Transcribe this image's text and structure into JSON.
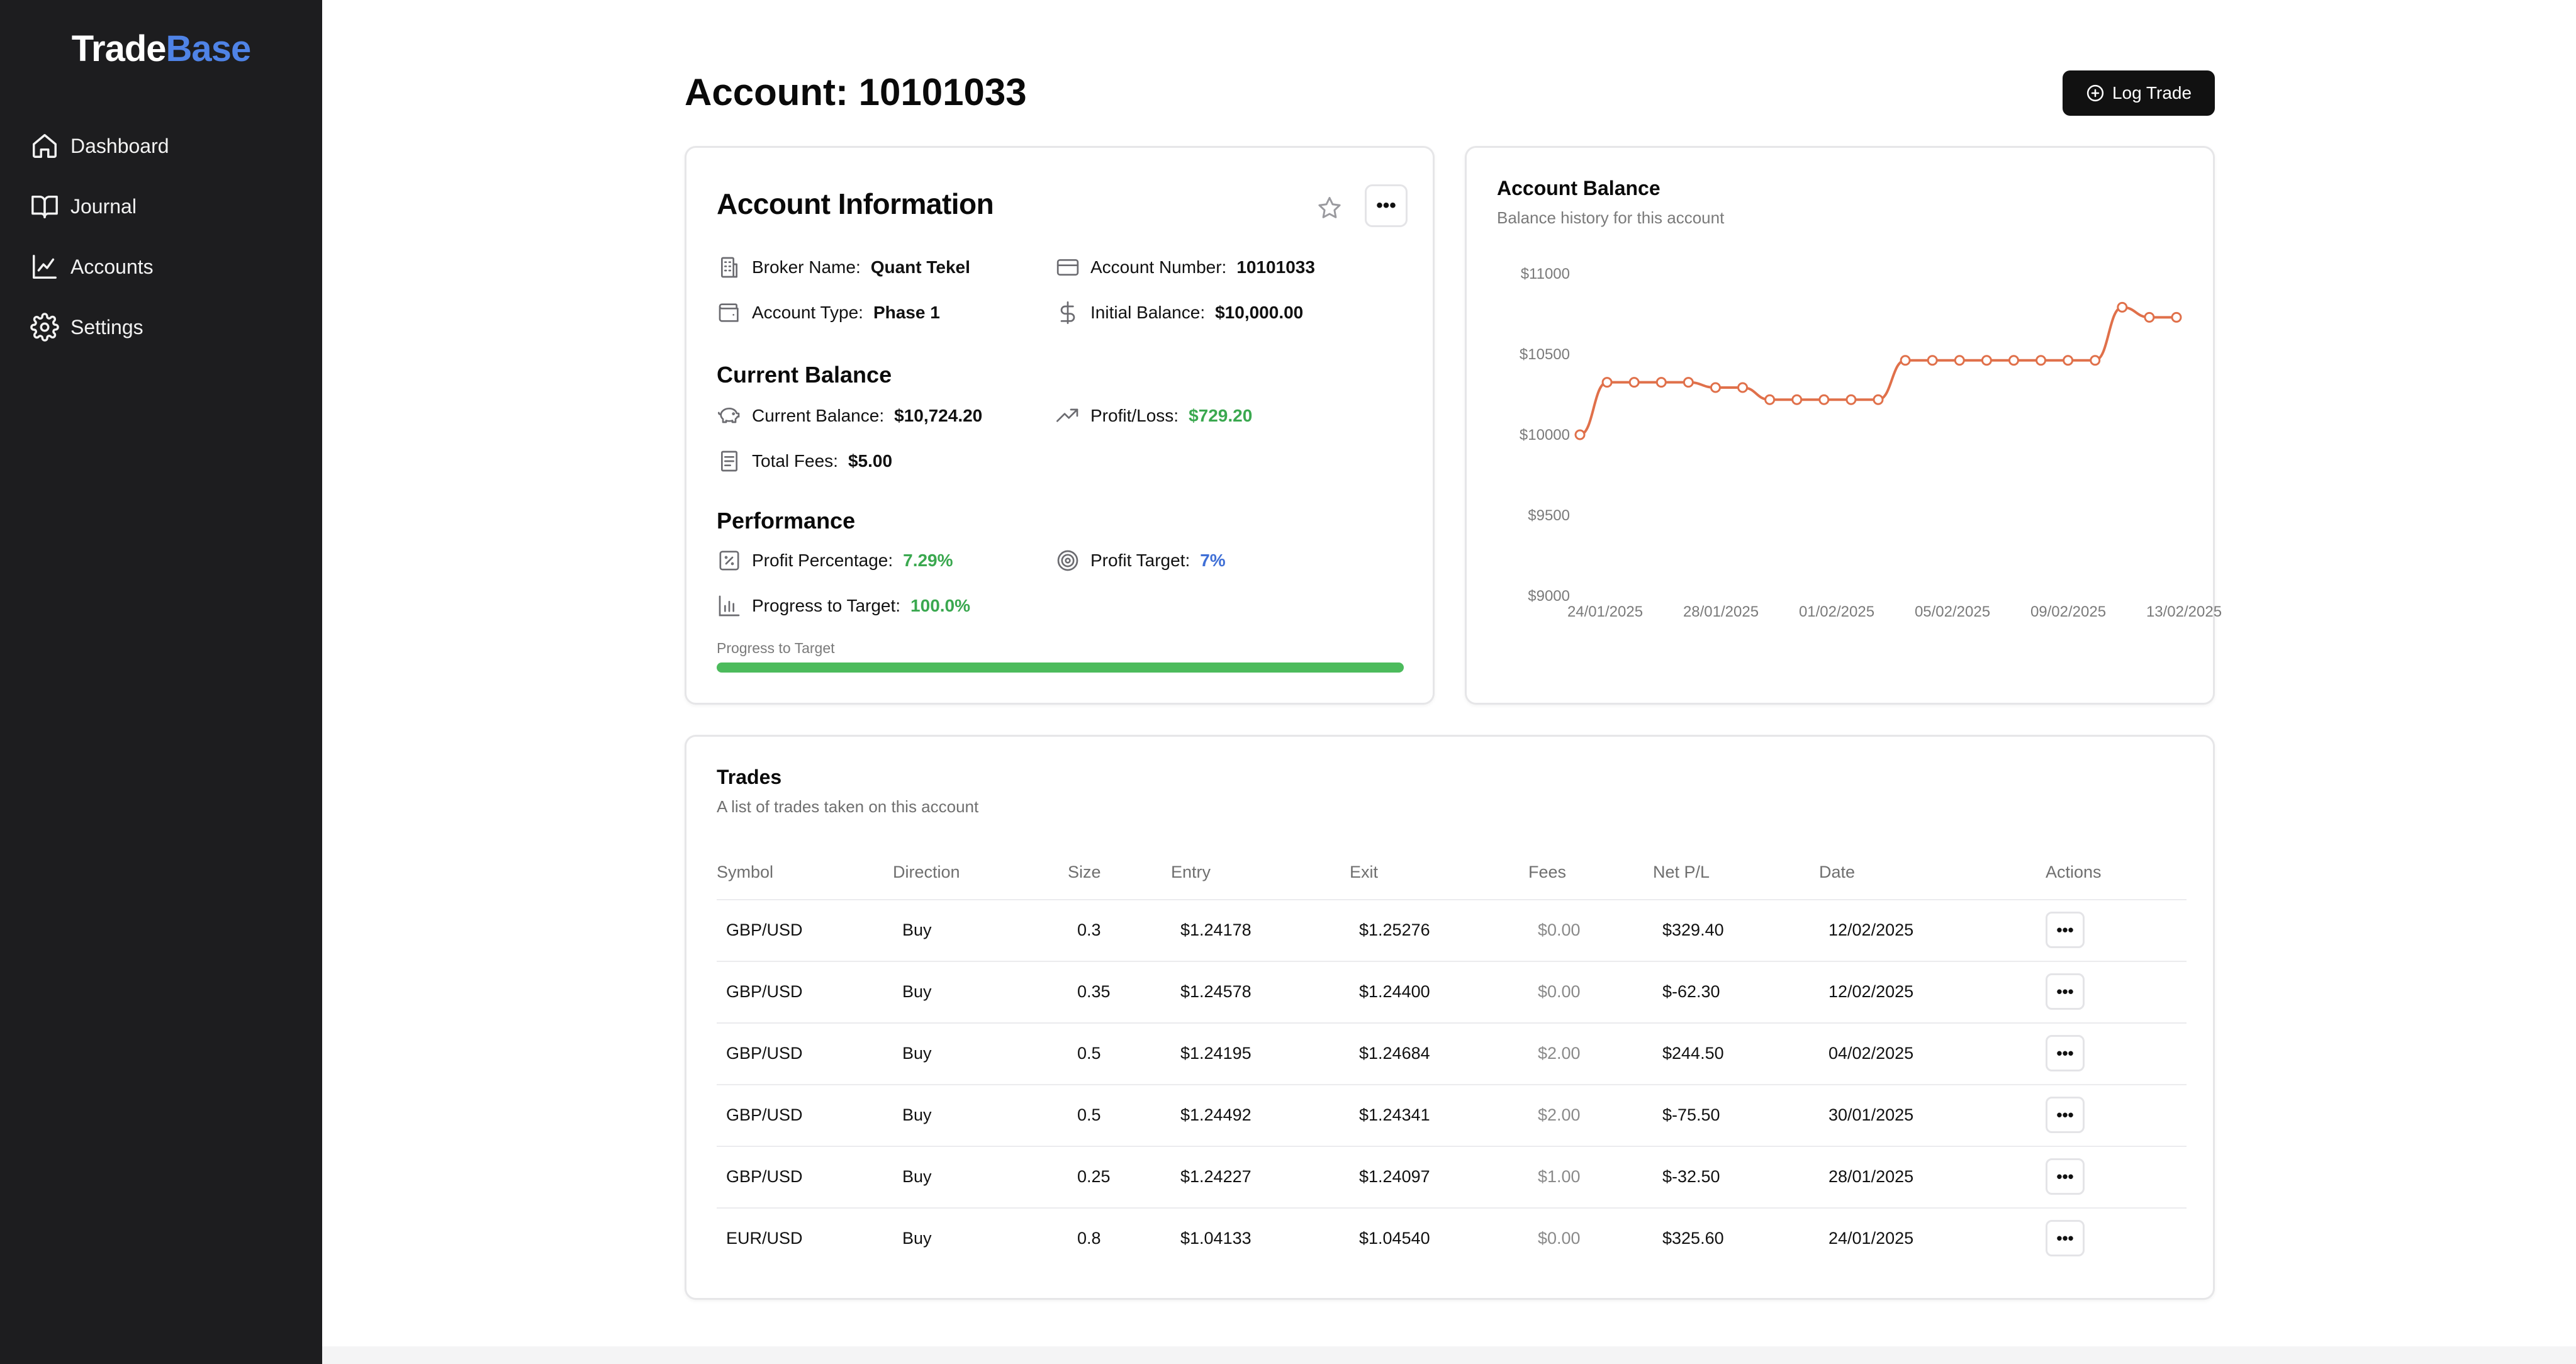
{
  "app": {
    "logo_part1": "Trade",
    "logo_part2": "Base"
  },
  "sidebar": {
    "items": [
      {
        "label": "Dashboard",
        "icon": "home-icon"
      },
      {
        "label": "Journal",
        "icon": "book-open-icon"
      },
      {
        "label": "Accounts",
        "icon": "line-chart-icon"
      },
      {
        "label": "Settings",
        "icon": "gear-icon"
      }
    ]
  },
  "header": {
    "title": "Account: 10101033",
    "log_trade_label": "Log Trade"
  },
  "account_info": {
    "title": "Account Information",
    "broker_label": "Broker Name:",
    "broker_value": "Quant Tekel",
    "account_number_label": "Account Number:",
    "account_number_value": "10101033",
    "account_type_label": "Account Type:",
    "account_type_value": "Phase 1",
    "initial_balance_label": "Initial Balance:",
    "initial_balance_value": "$10,000.00",
    "current_balance_heading": "Current Balance",
    "current_balance_label": "Current Balance:",
    "current_balance_value": "$10,724.20",
    "profit_loss_label": "Profit/Loss:",
    "profit_loss_value": "$729.20",
    "total_fees_label": "Total Fees:",
    "total_fees_value": "$5.00",
    "performance_heading": "Performance",
    "profit_pct_label": "Profit Percentage:",
    "profit_pct_value": "7.29%",
    "profit_target_label": "Profit Target:",
    "profit_target_value": "7%",
    "progress_label": "Progress to Target:",
    "progress_value": "100.0%",
    "progress_bar_label": "Progress to Target",
    "progress_fraction": 1.0
  },
  "colors": {
    "accent_green": "#3aa84f",
    "accent_blue": "#3f6fd6",
    "accent_red": "#e04b4b",
    "chart_line": "#e0704a",
    "sidebar_bg": "#1d1d1f",
    "logo_blue": "#4f83e6"
  },
  "balance_chart": {
    "title": "Account Balance",
    "subtitle": "Balance history for this account"
  },
  "chart_data": {
    "type": "line",
    "title": "Account Balance",
    "subtitle": "Balance history for this account",
    "xlabel": "",
    "ylabel": "",
    "ylim": [
      9000,
      11000
    ],
    "y_ticks": [
      11000,
      10500,
      10000,
      9500,
      9000
    ],
    "y_tick_labels": [
      "$11000",
      "$10500",
      "$10000",
      "$9500",
      "$9000"
    ],
    "x_tick_labels": [
      "24/01/2025",
      "28/01/2025",
      "01/02/2025",
      "05/02/2025",
      "09/02/2025",
      "13/02/2025"
    ],
    "grid": false,
    "series": [
      {
        "name": "Balance",
        "values": [
          10000,
          10325.6,
          10325.6,
          10325.6,
          10325.6,
          10293.1,
          10293.1,
          10217.6,
          10217.6,
          10217.6,
          10217.6,
          10217.6,
          10462.1,
          10462.1,
          10462.1,
          10462.1,
          10462.1,
          10462.1,
          10462.1,
          10462.1,
          10791.5,
          10729.2,
          10729.2
        ]
      }
    ]
  },
  "trades": {
    "title": "Trades",
    "subtitle": "A list of trades taken on this account",
    "columns": [
      "Symbol",
      "Direction",
      "Size",
      "Entry",
      "Exit",
      "Fees",
      "Net P/L",
      "Date",
      "Actions"
    ],
    "rows": [
      {
        "symbol": "GBP/USD",
        "direction": "Buy",
        "size": "0.3",
        "entry": "$1.24178",
        "exit": "$1.25276",
        "fees": "$0.00",
        "pl": "$329.40",
        "pl_sign": "pos",
        "date": "12/02/2025"
      },
      {
        "symbol": "GBP/USD",
        "direction": "Buy",
        "size": "0.35",
        "entry": "$1.24578",
        "exit": "$1.24400",
        "fees": "$0.00",
        "pl": "$-62.30",
        "pl_sign": "neg",
        "date": "12/02/2025"
      },
      {
        "symbol": "GBP/USD",
        "direction": "Buy",
        "size": "0.5",
        "entry": "$1.24195",
        "exit": "$1.24684",
        "fees": "$2.00",
        "pl": "$244.50",
        "pl_sign": "pos",
        "date": "04/02/2025"
      },
      {
        "symbol": "GBP/USD",
        "direction": "Buy",
        "size": "0.5",
        "entry": "$1.24492",
        "exit": "$1.24341",
        "fees": "$2.00",
        "pl": "$-75.50",
        "pl_sign": "neg",
        "date": "30/01/2025"
      },
      {
        "symbol": "GBP/USD",
        "direction": "Buy",
        "size": "0.25",
        "entry": "$1.24227",
        "exit": "$1.24097",
        "fees": "$1.00",
        "pl": "$-32.50",
        "pl_sign": "neg",
        "date": "28/01/2025"
      },
      {
        "symbol": "EUR/USD",
        "direction": "Buy",
        "size": "0.8",
        "entry": "$1.04133",
        "exit": "$1.04540",
        "fees": "$0.00",
        "pl": "$325.60",
        "pl_sign": "pos",
        "date": "24/01/2025"
      }
    ],
    "actions_glyph": "•••"
  }
}
